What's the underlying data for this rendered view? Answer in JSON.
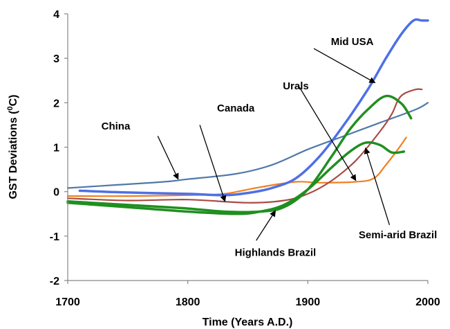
{
  "chart_data": {
    "type": "line",
    "title": "",
    "xlabel": "Time (Years A.D.)",
    "ylabel_main": "GST Deviations (",
    "ylabel_sup": "0",
    "ylabel_end": "C)",
    "xlim": [
      1700,
      2000
    ],
    "ylim": [
      -2,
      4
    ],
    "xticks": [
      1700,
      1800,
      1900,
      2000
    ],
    "yticks": [
      -2,
      -1,
      0,
      1,
      2,
      3,
      4
    ],
    "grid": false,
    "legend": "none",
    "series": [
      {
        "name": "China",
        "color": "#4f79a8",
        "x": [
          1700,
          1740,
          1780,
          1800,
          1840,
          1870,
          1900,
          1930,
          1960,
          1990,
          2000
        ],
        "y": [
          0.08,
          0.15,
          0.22,
          0.28,
          0.4,
          0.6,
          0.95,
          1.25,
          1.55,
          1.85,
          2.0
        ]
      },
      {
        "name": "Mid USA",
        "color": "#4f6fe6",
        "x": [
          1710,
          1750,
          1800,
          1830,
          1850,
          1870,
          1890,
          1910,
          1930,
          1950,
          1965,
          1978,
          1988,
          1995,
          2000
        ],
        "y": [
          0.02,
          -0.02,
          -0.05,
          -0.08,
          -0.03,
          0.08,
          0.3,
          0.8,
          1.5,
          2.3,
          3.0,
          3.55,
          3.85,
          3.85,
          3.85
        ]
      },
      {
        "name": "Canada",
        "color": "#f07f1f",
        "x": [
          1700,
          1750,
          1800,
          1830,
          1860,
          1890,
          1910,
          1940,
          1955,
          1965,
          1975,
          1982
        ],
        "y": [
          -0.1,
          -0.1,
          -0.08,
          -0.05,
          0.1,
          0.22,
          0.2,
          0.22,
          0.3,
          0.6,
          0.95,
          1.22
        ]
      },
      {
        "name": "Urals",
        "color": "#a84b44",
        "x": [
          1700,
          1750,
          1800,
          1850,
          1880,
          1900,
          1920,
          1940,
          1960,
          1970,
          1975,
          1980,
          1990,
          1995
        ],
        "y": [
          -0.15,
          -0.2,
          -0.18,
          -0.25,
          -0.2,
          -0.05,
          0.25,
          0.7,
          1.35,
          1.75,
          2.05,
          2.2,
          2.3,
          2.3
        ]
      },
      {
        "name": "Highlands Brazil",
        "color": "#1f8f1f",
        "x": [
          1700,
          1750,
          1800,
          1830,
          1860,
          1880,
          1900,
          1920,
          1935,
          1950,
          1965,
          1978,
          1986
        ],
        "y": [
          -0.22,
          -0.3,
          -0.38,
          -0.45,
          -0.45,
          -0.35,
          0.05,
          0.8,
          1.4,
          1.85,
          2.15,
          1.98,
          1.65
        ]
      },
      {
        "name": "Semi-arid Brazil",
        "color": "#1f8f1f",
        "x": [
          1700,
          1750,
          1800,
          1840,
          1860,
          1880,
          1900,
          1920,
          1935,
          1948,
          1960,
          1970,
          1980
        ],
        "y": [
          -0.25,
          -0.35,
          -0.45,
          -0.5,
          -0.45,
          -0.3,
          0.05,
          0.55,
          0.9,
          1.1,
          1.05,
          0.88,
          0.9
        ]
      }
    ],
    "annotations": [
      {
        "text": "Mid USA",
        "tx": 1937,
        "ty": 3.3,
        "ax": 1905,
        "ay": 3.22,
        "hx": 1956,
        "hy": 2.45
      },
      {
        "text": "Urals",
        "tx": 1890,
        "ty": 2.3,
        "ax": 1893,
        "ay": 2.35,
        "hx": 1940,
        "hy": 0.25
      },
      {
        "text": "Canada",
        "tx": 1840,
        "ty": 1.8,
        "ax": 1810,
        "ay": 1.5,
        "hx": 1831,
        "hy": -0.22
      },
      {
        "text": "China",
        "tx": 1740,
        "ty": 1.4,
        "ax": 1775,
        "ay": 1.25,
        "hx": 1792,
        "hy": 0.28
      },
      {
        "text": "Highlands Brazil",
        "tx": 1873,
        "ty": -1.45,
        "ax": 1857,
        "ay": -1.1,
        "hx": 1873,
        "hy": -0.43
      },
      {
        "text": "Semi-arid Brazil",
        "tx": 1975,
        "ty": -1.05,
        "ax": 1968,
        "ay": -0.75,
        "hx": 1948,
        "hy": 0.98
      }
    ]
  }
}
